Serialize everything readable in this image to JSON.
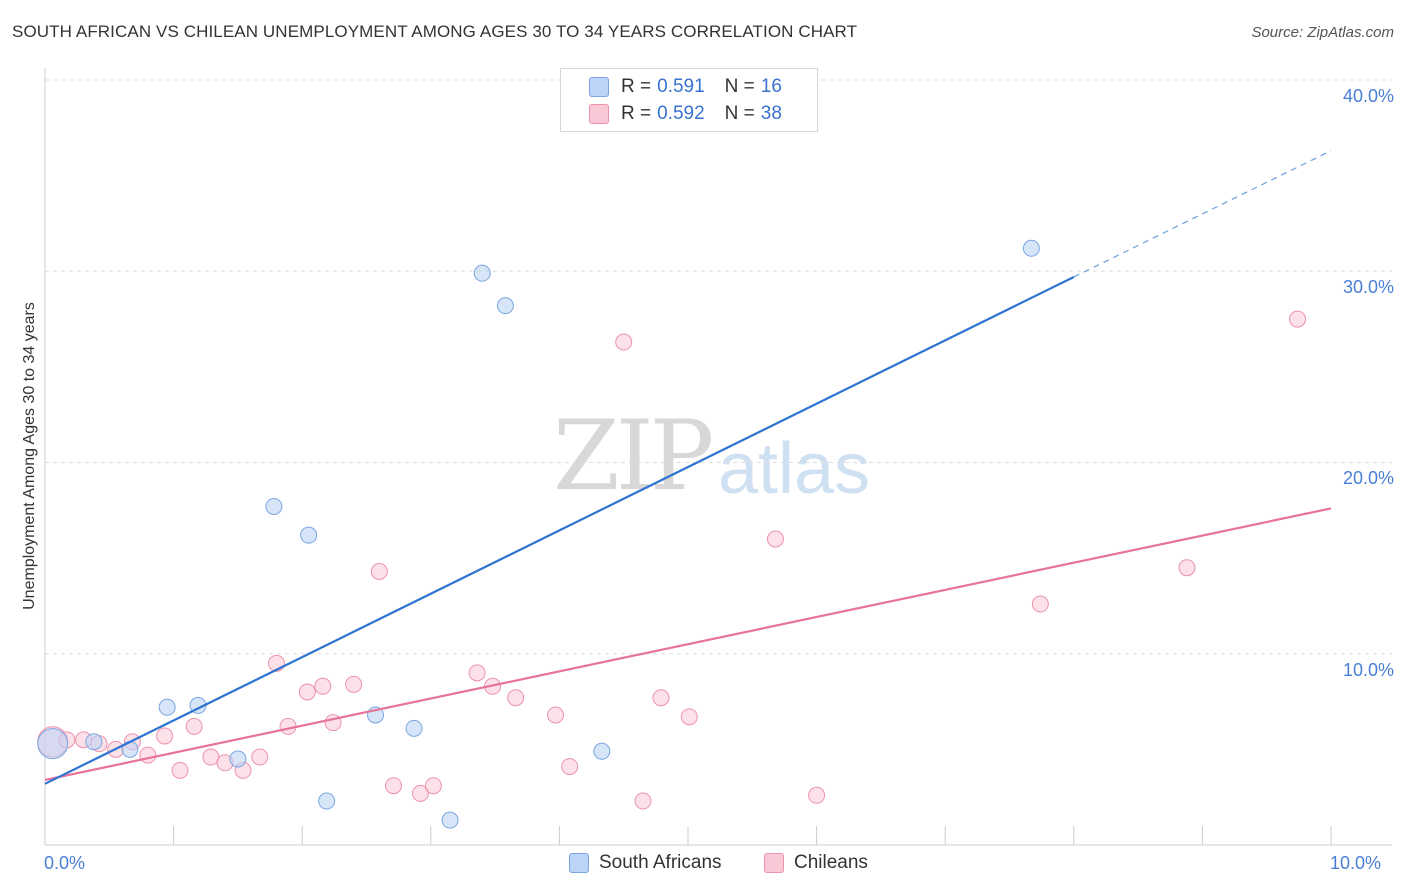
{
  "title": "SOUTH AFRICAN VS CHILEAN UNEMPLOYMENT AMONG AGES 30 TO 34 YEARS CORRELATION CHART",
  "source": "Source: ZipAtlas.com",
  "watermark": {
    "zip": "ZIP",
    "atlas": "atlas"
  },
  "legend": {
    "r_label": "R =",
    "n_label": "N =",
    "rows": [
      {
        "r": "0.591",
        "n": "16"
      },
      {
        "r": "0.592",
        "n": "38"
      }
    ]
  },
  "colors": {
    "south_africans_fill": "#bcd4f5",
    "south_africans_stroke": "#7aa6e0",
    "south_africans_line": "#2f74d0",
    "chileans_fill": "#f9c8d6",
    "chileans_stroke": "#ec92ad",
    "chileans_line": "#e8739a",
    "grid": "#dddddd",
    "tick_text": "#4a7fd6"
  },
  "chart_data": {
    "type": "scatter",
    "title": "SOUTH AFRICAN VS CHILEAN UNEMPLOYMENT AMONG AGES 30 TO 34 YEARS CORRELATION CHART",
    "xlabel": "",
    "ylabel": "Unemployment Among Ages 30 to 34 years",
    "xlim": [
      0,
      10
    ],
    "ylim": [
      0,
      40
    ],
    "x_tick_labels": [
      "0.0%",
      "10.0%"
    ],
    "y_ticks": [
      10,
      20,
      30,
      40
    ],
    "y_tick_labels": [
      "10.0%",
      "20.0%",
      "30.0%",
      "40.0%"
    ],
    "series": [
      {
        "name": "South Africans",
        "points": [
          [
            0.06,
            5.3
          ],
          [
            0.38,
            5.4
          ],
          [
            0.66,
            5.0
          ],
          [
            0.95,
            7.2
          ],
          [
            1.19,
            7.3
          ],
          [
            1.5,
            4.5
          ],
          [
            1.78,
            17.7
          ],
          [
            2.05,
            16.2
          ],
          [
            2.19,
            2.3
          ],
          [
            2.57,
            6.8
          ],
          [
            2.87,
            6.1
          ],
          [
            3.15,
            1.3
          ],
          [
            3.4,
            29.9
          ],
          [
            3.58,
            28.2
          ],
          [
            4.33,
            4.9
          ],
          [
            7.67,
            31.2
          ]
        ],
        "trend": {
          "x": [
            0,
            8.0
          ],
          "y": [
            3.2,
            29.7
          ]
        },
        "trend_dashed": {
          "x": [
            8.0,
            10.0
          ],
          "y": [
            29.7,
            36.3
          ]
        }
      },
      {
        "name": "Chileans",
        "points": [
          [
            0.06,
            5.4
          ],
          [
            0.17,
            5.5
          ],
          [
            0.3,
            5.5
          ],
          [
            0.42,
            5.3
          ],
          [
            0.55,
            5.0
          ],
          [
            0.68,
            5.4
          ],
          [
            0.8,
            4.7
          ],
          [
            0.93,
            5.7
          ],
          [
            1.05,
            3.9
          ],
          [
            1.16,
            6.2
          ],
          [
            1.29,
            4.6
          ],
          [
            1.4,
            4.3
          ],
          [
            1.54,
            3.9
          ],
          [
            1.67,
            4.6
          ],
          [
            1.8,
            9.5
          ],
          [
            1.89,
            6.2
          ],
          [
            2.04,
            8.0
          ],
          [
            2.16,
            8.3
          ],
          [
            2.24,
            6.4
          ],
          [
            2.4,
            8.4
          ],
          [
            2.6,
            14.3
          ],
          [
            2.71,
            3.1
          ],
          [
            2.92,
            2.7
          ],
          [
            3.02,
            3.1
          ],
          [
            3.36,
            9.0
          ],
          [
            3.48,
            8.3
          ],
          [
            3.66,
            7.7
          ],
          [
            3.97,
            6.8
          ],
          [
            4.08,
            4.1
          ],
          [
            4.5,
            26.3
          ],
          [
            4.65,
            2.3
          ],
          [
            4.79,
            7.7
          ],
          [
            5.01,
            6.7
          ],
          [
            5.68,
            16.0
          ],
          [
            6.0,
            2.6
          ],
          [
            7.74,
            12.6
          ],
          [
            8.88,
            14.5
          ],
          [
            9.74,
            27.5
          ]
        ],
        "trend": {
          "x": [
            0,
            10.0
          ],
          "y": [
            3.4,
            17.6
          ]
        }
      }
    ],
    "legend_position": "top-center"
  }
}
